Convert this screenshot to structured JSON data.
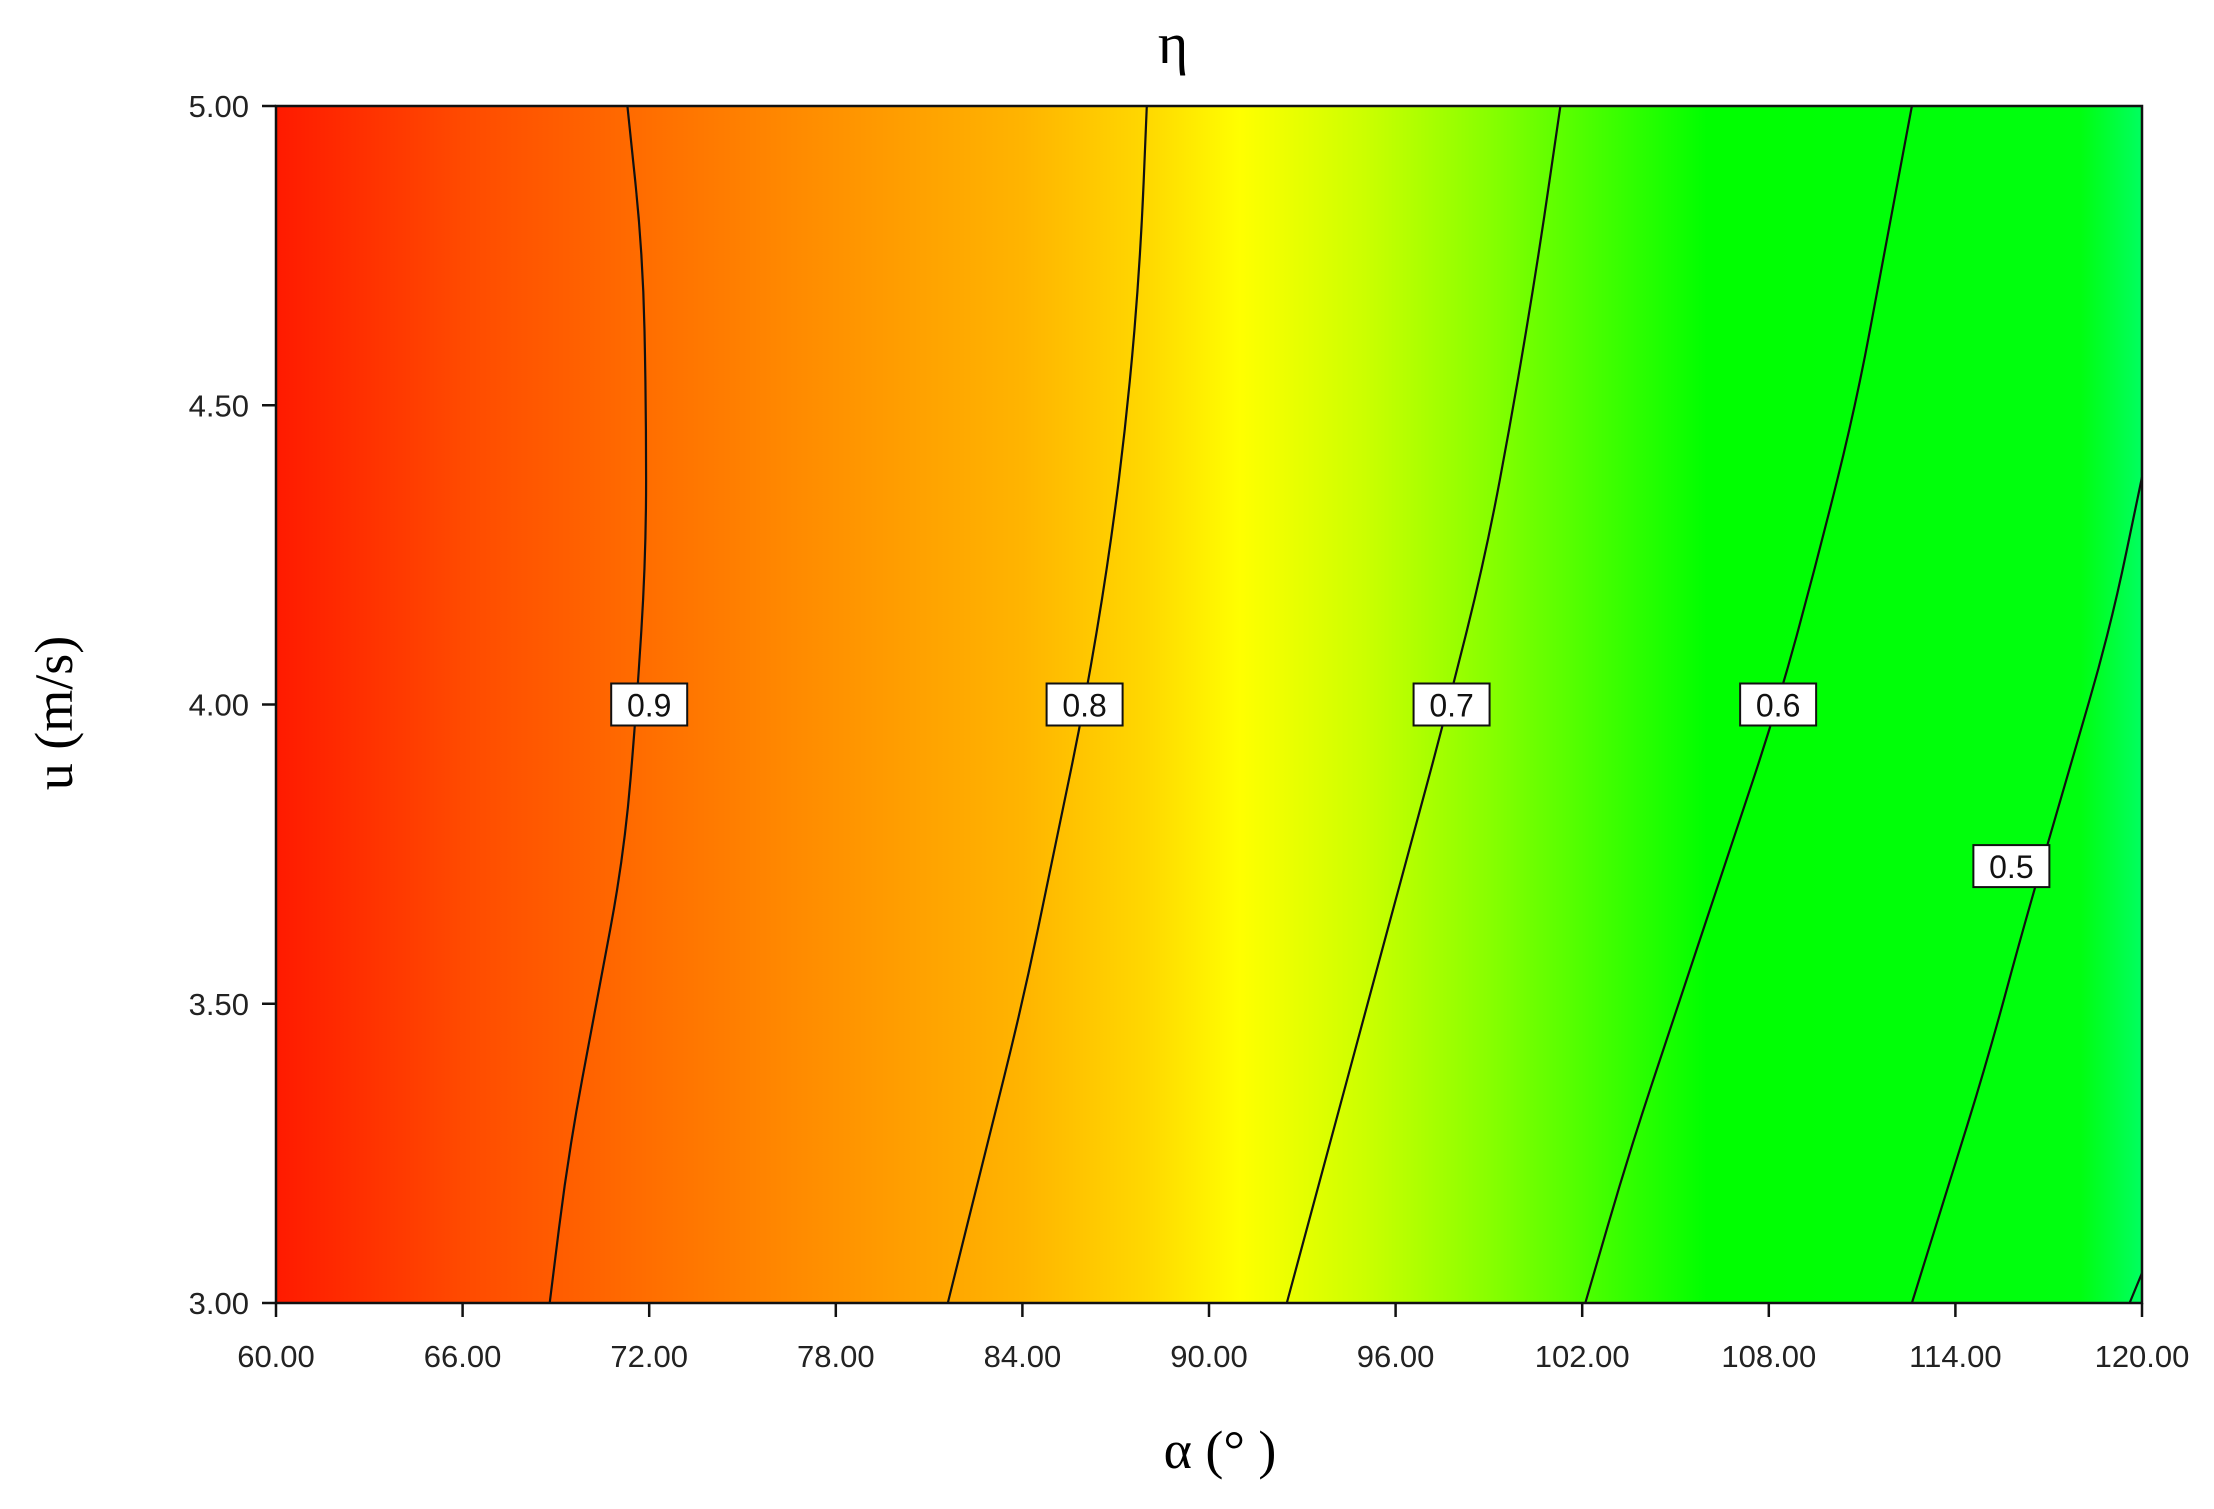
{
  "chart_data": {
    "type": "contour",
    "title": "η",
    "xlabel": "α (°  )",
    "ylabel": "u (m/s)",
    "xlim": [
      60,
      120
    ],
    "ylim": [
      3,
      5
    ],
    "x_ticks": [
      "60.00",
      "66.00",
      "72.00",
      "78.00",
      "84.00",
      "90.00",
      "96.00",
      "102.00",
      "108.00",
      "114.00",
      "120.00"
    ],
    "y_ticks": [
      "3.00",
      "3.50",
      "4.00",
      "4.50",
      "5.00"
    ],
    "grid": false,
    "colormap": [
      {
        "x": 60,
        "color": "#ff1a00"
      },
      {
        "x": 66,
        "color": "#ff4a00"
      },
      {
        "x": 72,
        "color": "#ff6e00"
      },
      {
        "x": 78,
        "color": "#ff9200"
      },
      {
        "x": 84,
        "color": "#ffb400"
      },
      {
        "x": 88,
        "color": "#ffd800"
      },
      {
        "x": 91,
        "color": "#ffff00"
      },
      {
        "x": 95,
        "color": "#ccff00"
      },
      {
        "x": 99,
        "color": "#88ff00"
      },
      {
        "x": 103,
        "color": "#3cff00"
      },
      {
        "x": 106,
        "color": "#00ff00"
      },
      {
        "x": 118,
        "color": "#00ff10"
      },
      {
        "x": 120,
        "color": "#00ff60"
      }
    ],
    "contours": [
      {
        "level": "0.9",
        "label_at": [
          72.0,
          4.0
        ],
        "points": [
          [
            71.3,
            5.0
          ],
          [
            71.8,
            4.75
          ],
          [
            71.9,
            4.5
          ],
          [
            71.9,
            4.25
          ],
          [
            71.6,
            4.0
          ],
          [
            71.2,
            3.75
          ],
          [
            70.3,
            3.5
          ],
          [
            69.4,
            3.25
          ],
          [
            68.8,
            3.0
          ]
        ]
      },
      {
        "level": "0.8",
        "label_at": [
          86.0,
          4.0
        ],
        "points": [
          [
            88.0,
            5.0
          ],
          [
            87.8,
            4.75
          ],
          [
            87.4,
            4.5
          ],
          [
            86.8,
            4.25
          ],
          [
            86.0,
            4.0
          ],
          [
            85.0,
            3.75
          ],
          [
            84.0,
            3.5
          ],
          [
            82.8,
            3.25
          ],
          [
            81.6,
            3.0
          ]
        ]
      },
      {
        "level": "0.7",
        "label_at": [
          97.8,
          4.0
        ],
        "points": [
          [
            101.3,
            5.0
          ],
          [
            100.6,
            4.75
          ],
          [
            99.8,
            4.5
          ],
          [
            98.9,
            4.25
          ],
          [
            97.7,
            4.0
          ],
          [
            96.4,
            3.75
          ],
          [
            95.1,
            3.5
          ],
          [
            93.8,
            3.25
          ],
          [
            92.5,
            3.0
          ]
        ]
      },
      {
        "level": "0.6",
        "label_at": [
          108.3,
          4.0
        ],
        "points": [
          [
            112.6,
            5.0
          ],
          [
            111.7,
            4.75
          ],
          [
            110.8,
            4.5
          ],
          [
            109.6,
            4.25
          ],
          [
            108.3,
            4.0
          ],
          [
            106.7,
            3.75
          ],
          [
            105.1,
            3.5
          ],
          [
            103.5,
            3.25
          ],
          [
            102.1,
            3.0
          ]
        ]
      },
      {
        "level": "0.5",
        "label_at": [
          115.8,
          3.73
        ],
        "points": [
          [
            120.0,
            4.38
          ],
          [
            119.0,
            4.13
          ],
          [
            117.6,
            3.88
          ],
          [
            116.2,
            3.63
          ],
          [
            115.0,
            3.4
          ],
          [
            113.8,
            3.2
          ],
          [
            112.6,
            3.0
          ]
        ]
      },
      {
        "level": "",
        "label_at": null,
        "points": [
          [
            119.6,
            3.0
          ],
          [
            120.0,
            3.05
          ]
        ]
      }
    ]
  }
}
